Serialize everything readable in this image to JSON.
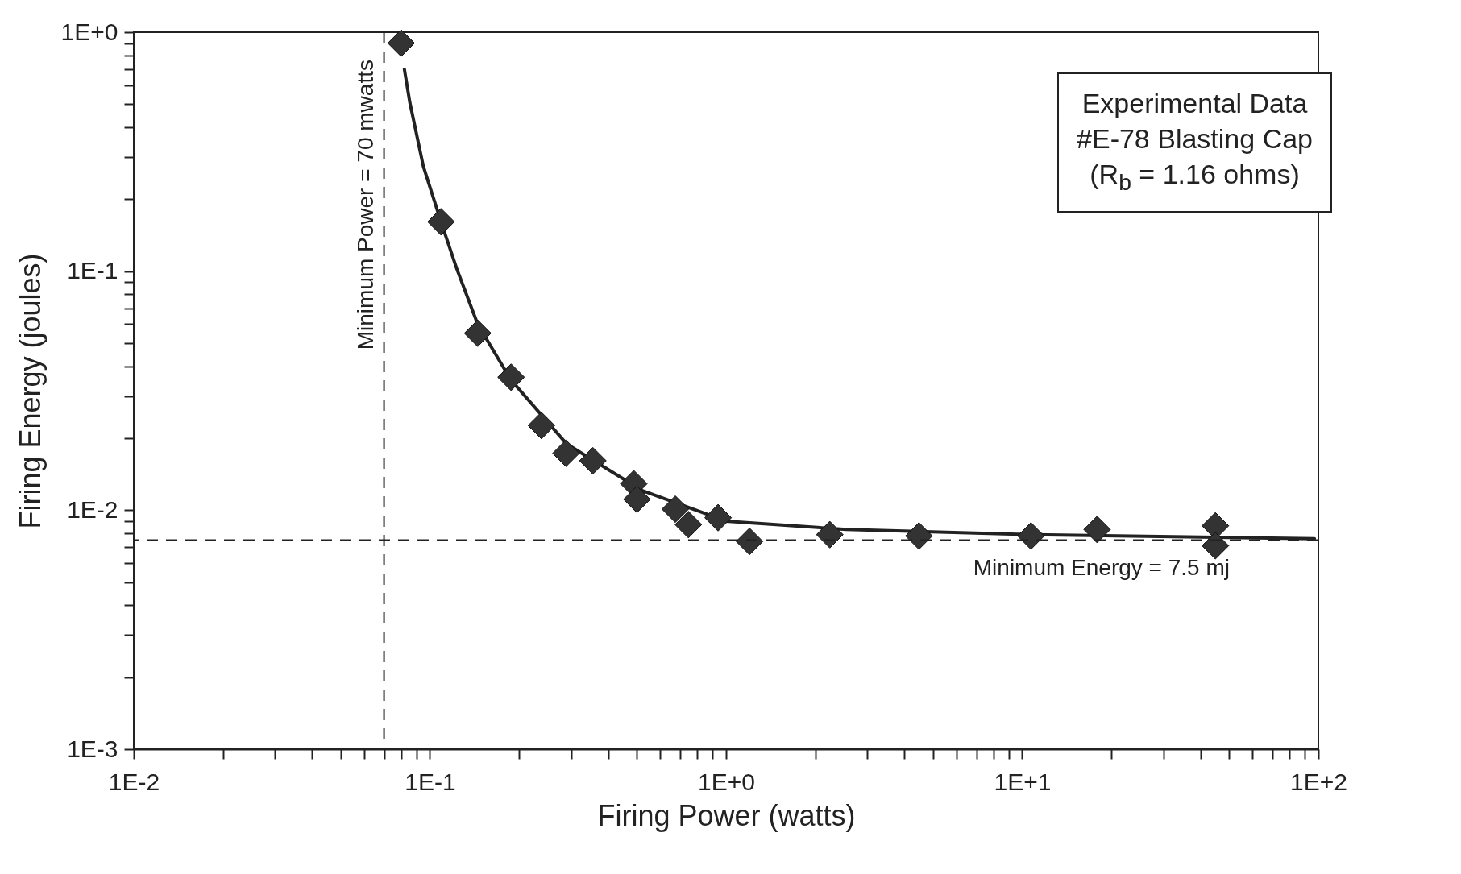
{
  "chart_data": {
    "type": "scatter",
    "xlabel": "Firing Power (watts)",
    "ylabel": "Firing Energy (joules)",
    "log": "xy",
    "grid": false,
    "xlim": [
      0.01,
      100
    ],
    "ylim": [
      0.001,
      1
    ],
    "xticks": [
      {
        "value": 0.01,
        "label": "1E-2"
      },
      {
        "value": 0.02,
        "label": null
      },
      {
        "value": 0.03,
        "label": null
      },
      {
        "value": 0.04,
        "label": null
      },
      {
        "value": 0.05,
        "label": null
      },
      {
        "value": 0.06,
        "label": null
      },
      {
        "value": 0.07,
        "label": null
      },
      {
        "value": 0.08,
        "label": null
      },
      {
        "value": 0.09,
        "label": null
      },
      {
        "value": 0.1,
        "label": "1E-1"
      },
      {
        "value": 0.2,
        "label": null
      },
      {
        "value": 0.3,
        "label": null
      },
      {
        "value": 0.4,
        "label": null
      },
      {
        "value": 0.5,
        "label": null
      },
      {
        "value": 0.6,
        "label": null
      },
      {
        "value": 0.7,
        "label": null
      },
      {
        "value": 0.8,
        "label": null
      },
      {
        "value": 0.9,
        "label": null
      },
      {
        "value": 1,
        "label": "1E+0"
      },
      {
        "value": 2,
        "label": null
      },
      {
        "value": 3,
        "label": null
      },
      {
        "value": 4,
        "label": null
      },
      {
        "value": 5,
        "label": null
      },
      {
        "value": 6,
        "label": null
      },
      {
        "value": 7,
        "label": null
      },
      {
        "value": 8,
        "label": null
      },
      {
        "value": 9,
        "label": null
      },
      {
        "value": 10,
        "label": "1E+1"
      },
      {
        "value": 20,
        "label": null
      },
      {
        "value": 30,
        "label": null
      },
      {
        "value": 40,
        "label": null
      },
      {
        "value": 50,
        "label": null
      },
      {
        "value": 60,
        "label": null
      },
      {
        "value": 70,
        "label": null
      },
      {
        "value": 80,
        "label": null
      },
      {
        "value": 90,
        "label": null
      },
      {
        "value": 100,
        "label": "1E+2"
      }
    ],
    "yticks": [
      {
        "value": 0.001,
        "label": "1E-3"
      },
      {
        "value": 0.002,
        "label": null
      },
      {
        "value": 0.003,
        "label": null
      },
      {
        "value": 0.004,
        "label": null
      },
      {
        "value": 0.005,
        "label": null
      },
      {
        "value": 0.006,
        "label": null
      },
      {
        "value": 0.007,
        "label": null
      },
      {
        "value": 0.008,
        "label": null
      },
      {
        "value": 0.009,
        "label": null
      },
      {
        "value": 0.01,
        "label": "1E-2"
      },
      {
        "value": 0.02,
        "label": null
      },
      {
        "value": 0.03,
        "label": null
      },
      {
        "value": 0.04,
        "label": null
      },
      {
        "value": 0.05,
        "label": null
      },
      {
        "value": 0.06,
        "label": null
      },
      {
        "value": 0.07,
        "label": null
      },
      {
        "value": 0.08,
        "label": null
      },
      {
        "value": 0.09,
        "label": null
      },
      {
        "value": 0.1,
        "label": "1E-1"
      },
      {
        "value": 0.2,
        "label": null
      },
      {
        "value": 0.3,
        "label": null
      },
      {
        "value": 0.4,
        "label": null
      },
      {
        "value": 0.5,
        "label": null
      },
      {
        "value": 0.6,
        "label": null
      },
      {
        "value": 0.7,
        "label": null
      },
      {
        "value": 0.8,
        "label": null
      },
      {
        "value": 0.9,
        "label": null
      },
      {
        "value": 1,
        "label": "1E+0"
      }
    ],
    "series": [
      {
        "marker": "diamond",
        "color": "#333333",
        "x": [
          0.08,
          0.109,
          0.145,
          0.188,
          0.238,
          0.288,
          0.355,
          0.488,
          0.5,
          0.674,
          0.746,
          0.94,
          1.2,
          2.24,
          4.48,
          10.7,
          17.9,
          44.9,
          44.9
        ],
        "values": [
          0.9,
          0.161,
          0.055,
          0.036,
          0.0226,
          0.0173,
          0.0161,
          0.0129,
          0.0111,
          0.0101,
          0.0087,
          0.0093,
          0.0074,
          0.0079,
          0.0078,
          0.0078,
          0.0083,
          0.0086,
          0.0071
        ]
      },
      {
        "type": "line",
        "color": "#222222",
        "line_style": "solid",
        "x": [
          0.082,
          0.0855,
          0.095,
          0.109,
          0.123,
          0.145,
          0.188,
          0.29,
          0.52,
          1.0,
          2.55,
          10.9,
          97
        ],
        "values": [
          0.7,
          0.51,
          0.275,
          0.161,
          0.103,
          0.06,
          0.035,
          0.0189,
          0.0121,
          0.009,
          0.0083,
          0.0079,
          0.0076
        ]
      }
    ],
    "ref_lines": [
      {
        "axis": "x",
        "value": 0.07,
        "label": "Minimum Power = 70 mwatts",
        "color": "#222222",
        "line_style": "dashed"
      },
      {
        "axis": "y",
        "value": 0.0075,
        "label": "Minimum Energy = 7.5 mj",
        "color": "#222222",
        "line_style": "dashed"
      }
    ],
    "annotations": [
      "Experimental Data",
      "#E-78 Blasting Cap",
      "(R$_{b}$ = 1.16 ohms)"
    ]
  }
}
